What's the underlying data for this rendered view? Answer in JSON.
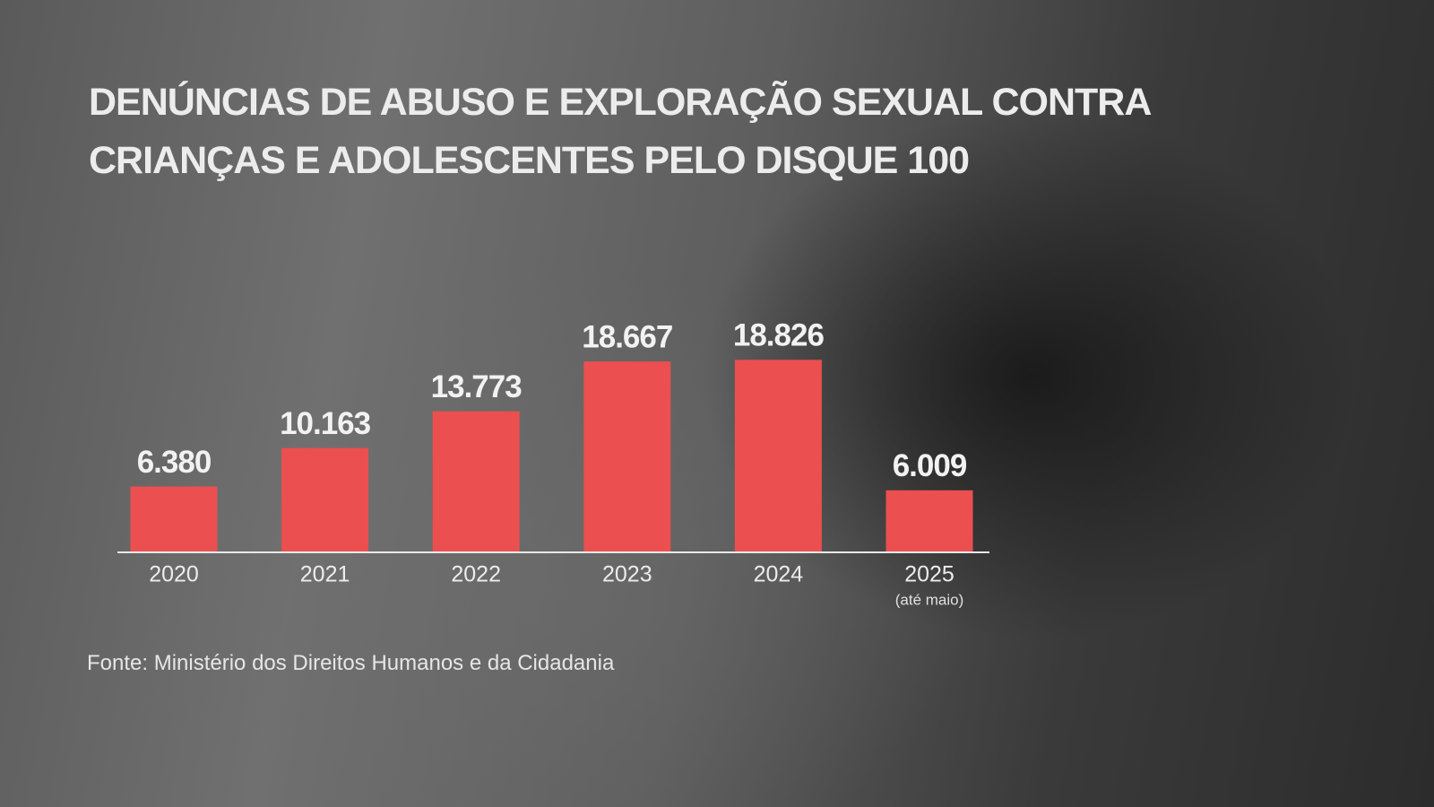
{
  "chart_data": {
    "type": "bar",
    "title": [
      "DENÚNCIAS DE ABUSO E EXPLORAÇÃO SEXUAL CONTRA",
      "CRIANÇAS E ADOLESCENTES PELO DISQUE 100"
    ],
    "categories": [
      "2020",
      "2021",
      "2022",
      "2023",
      "2024",
      "2025"
    ],
    "category_sublabels": [
      null,
      null,
      null,
      null,
      null,
      "(até maio)"
    ],
    "values": [
      6380,
      10163,
      13773,
      18667,
      18826,
      6009
    ],
    "value_labels": [
      "6.380",
      "10.163",
      "13.773",
      "18.667",
      "18.826",
      "6.009"
    ],
    "color": "#ec4f4f",
    "source": "Fonte: Ministério dos Direitos Humanos e da Cidadania"
  }
}
